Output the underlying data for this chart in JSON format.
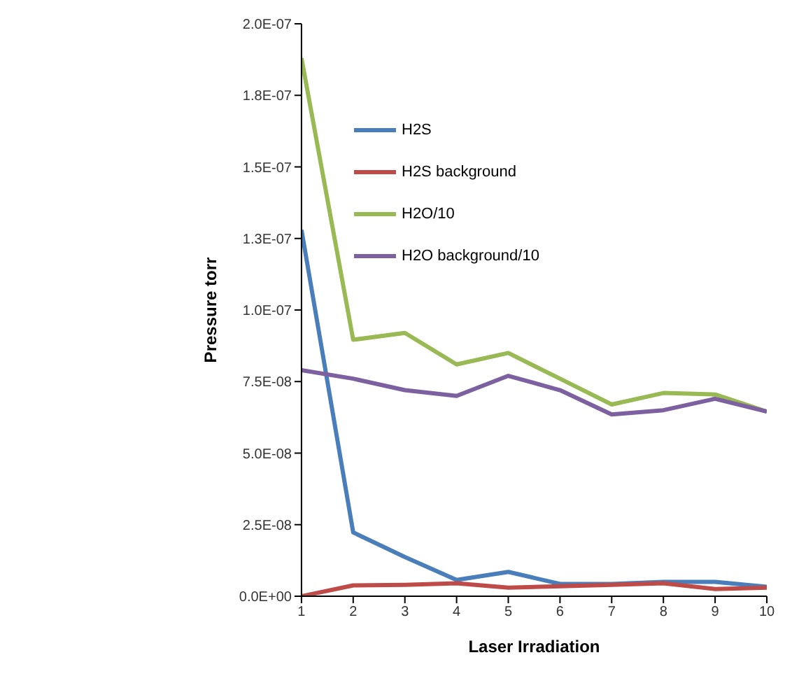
{
  "chart_data": {
    "type": "line",
    "xlabel": "Laser Irradiation",
    "ylabel": "Pressure torr",
    "x": [
      1,
      2,
      3,
      4,
      5,
      6,
      7,
      8,
      9,
      10
    ],
    "xlim": [
      1,
      10
    ],
    "xticks": [
      1,
      2,
      3,
      4,
      5,
      6,
      7,
      8,
      9,
      10
    ],
    "ylim": [
      0,
      2e-07
    ],
    "yticks": [
      {
        "value": 0,
        "label": "0.0E+00"
      },
      {
        "value": 2.5e-08,
        "label": "2.5E-08"
      },
      {
        "value": 5e-08,
        "label": "5.0E-08"
      },
      {
        "value": 7.5e-08,
        "label": "7.5E-08"
      },
      {
        "value": 1e-07,
        "label": "1.0E-07"
      },
      {
        "value": 1.25e-07,
        "label": "1.3E-07"
      },
      {
        "value": 1.5e-07,
        "label": "1.5E-07"
      },
      {
        "value": 1.75e-07,
        "label": "1.8E-07"
      },
      {
        "value": 2e-07,
        "label": "2.0E-07"
      }
    ],
    "grid": false,
    "legend": "top",
    "marker": "none",
    "line_style": "solid",
    "series": [
      {
        "name": "H2S",
        "color": "#4a7ebb",
        "values": [
          1.28e-07,
          2.23e-08,
          1.37e-08,
          5.7e-09,
          8.5e-09,
          4.3e-09,
          4.3e-09,
          5e-09,
          5e-09,
          3.3e-09
        ]
      },
      {
        "name": "H2S background",
        "color": "#be4b48",
        "values": [
          0,
          3.8e-09,
          4e-09,
          4.5e-09,
          3e-09,
          3.5e-09,
          4e-09,
          4.5e-09,
          2.5e-09,
          3e-09
        ]
      },
      {
        "name": "H2O/10",
        "color": "#98b954",
        "values": [
          1.88e-07,
          8.96e-08,
          9.2e-08,
          8.1e-08,
          8.5e-08,
          7.6e-08,
          6.7e-08,
          7.1e-08,
          7.05e-08,
          6.45e-08
        ]
      },
      {
        "name": "H2O background/10",
        "color": "#7d60a0",
        "values": [
          7.9e-08,
          7.6e-08,
          7.2e-08,
          7e-08,
          7.7e-08,
          7.2e-08,
          6.35e-08,
          6.5e-08,
          6.9e-08,
          6.45e-08
        ]
      }
    ]
  }
}
